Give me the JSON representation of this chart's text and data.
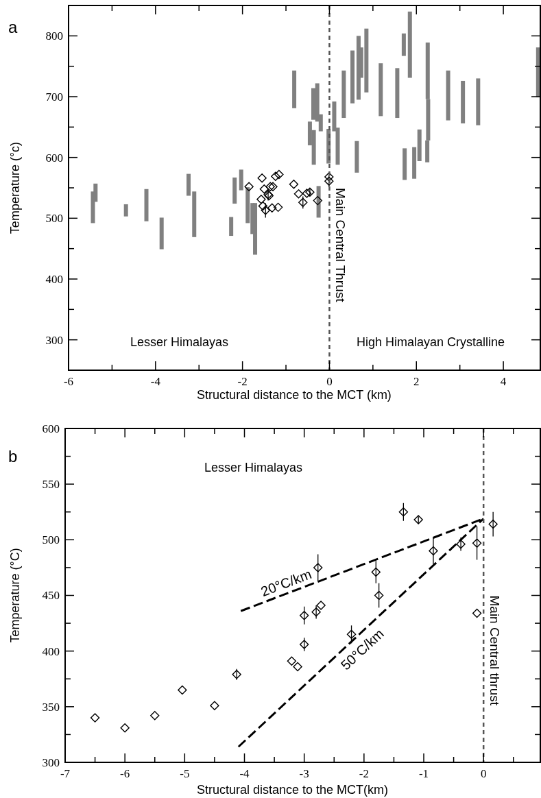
{
  "chart_data": [
    {
      "type": "bar",
      "title": "a",
      "xlabel": "Structural distance to the MCT (km)",
      "ylabel": "Temperature  (°c)",
      "xlim": [
        -6,
        4.85
      ],
      "ylim": [
        250,
        850
      ],
      "xticks": [
        -6,
        {
          "value": -5,
          "label": null
        },
        -4,
        {
          "value": -3,
          "label": null
        },
        -2,
        {
          "value": -1,
          "label": null
        },
        0,
        {
          "value": 1,
          "label": null
        },
        2,
        {
          "value": 3,
          "label": null
        },
        4
      ],
      "yticks": [
        {
          "value": 250,
          "label": null
        },
        300,
        {
          "value": 350,
          "label": null
        },
        400,
        {
          "value": 450,
          "label": null
        },
        500,
        {
          "value": 550,
          "label": null
        },
        600,
        {
          "value": 650,
          "label": null
        },
        700,
        {
          "value": 750,
          "label": null
        },
        800
      ],
      "series": [
        {
          "color": "#808080",
          "x": [
            -5.44,
            -5.38,
            -4.68,
            -4.21,
            -3.86,
            -3.24,
            -3.11,
            -2.26,
            -2.18,
            -2.03,
            -1.88,
            -1.77,
            -1.71,
            -0.81,
            -0.45,
            -0.37,
            -0.36,
            -0.28,
            -0.25,
            -0.2,
            -0.02,
            0.11,
            0.19,
            0.33,
            0.53,
            0.63,
            0.67,
            0.73,
            0.85,
            1.18,
            1.56,
            1.71,
            1.73,
            1.85,
            1.95,
            2.07,
            2.25,
            2.26,
            2.27,
            2.73,
            3.07,
            3.42,
            4.8
          ],
          "base": [
            492,
            527,
            503,
            495,
            449,
            537,
            469,
            471,
            524,
            546,
            492,
            474,
            440,
            681,
            620,
            662,
            588,
            659,
            501,
            643,
            590,
            643,
            588,
            665,
            689,
            575,
            695,
            731,
            707,
            668,
            665,
            767,
            563,
            731,
            565,
            594,
            592,
            696,
            628,
            661,
            656,
            653,
            699
          ],
          "values": [
            52,
            30,
            20,
            53,
            52,
            36,
            75,
            31,
            43,
            34,
            59,
            51,
            85,
            62,
            39,
            52,
            57,
            63,
            52,
            28,
            57,
            49,
            61,
            78,
            87,
            52,
            105,
            50,
            105,
            87,
            82,
            37,
            52,
            109,
            52,
            52,
            36,
            93,
            68,
            82,
            70,
            77,
            82
          ]
        },
        {
          "type": "scatter",
          "color": "#000000",
          "marker": "diamond",
          "x": [
            -1.85,
            -1.55,
            -1.57,
            -1.53,
            -1.47,
            -1.5,
            -1.41,
            -1.36,
            -1.3,
            -1.24,
            -1.16,
            -1.32,
            -1.18,
            -1.39,
            -0.82,
            -0.71,
            -0.61,
            -0.52,
            -0.45,
            -0.27,
            -0.01,
            -0.01
          ],
          "values": [
            552,
            566,
            531,
            520,
            513,
            548,
            539,
            552,
            552,
            569,
            572,
            517,
            518,
            537,
            556,
            540,
            526,
            541,
            543,
            529,
            568,
            561
          ],
          "errors": [
            null,
            null,
            null,
            null,
            12,
            null,
            10,
            null,
            null,
            null,
            null,
            null,
            null,
            null,
            null,
            null,
            10,
            null,
            6,
            null,
            null,
            10
          ]
        }
      ],
      "ref_lines": [
        {
          "axis": "x",
          "value": 0,
          "label": "Main Central Thrust",
          "color": "#555555",
          "line_style": "dashed"
        }
      ],
      "annotations": [
        "Lesser Himalayas",
        "High Himalayan Crystalline"
      ]
    },
    {
      "type": "scatter",
      "title": "b",
      "xlabel": "Structural distance to the MCT(km)",
      "ylabel": "Temperature (°C)",
      "xlim": [
        -7,
        0.95
      ],
      "ylim": [
        300,
        600
      ],
      "xticks": [
        -7,
        {
          "value": -6.5,
          "label": null
        },
        -6,
        {
          "value": -5.5,
          "label": null
        },
        -5,
        {
          "value": -4.5,
          "label": null
        },
        -4,
        {
          "value": -3.5,
          "label": null
        },
        -3,
        {
          "value": -2.5,
          "label": null
        },
        -2,
        {
          "value": -1.5,
          "label": null
        },
        -1,
        {
          "value": -0.5,
          "label": null
        },
        0,
        {
          "value": 0.5,
          "label": null
        }
      ],
      "yticks": [
        300,
        {
          "value": 325,
          "label": null
        },
        350,
        {
          "value": 375,
          "label": null
        },
        400,
        {
          "value": 425,
          "label": null
        },
        450,
        {
          "value": 475,
          "label": null
        },
        500,
        {
          "value": 525,
          "label": null
        },
        550,
        {
          "value": 575,
          "label": null
        },
        600
      ],
      "series": [
        {
          "color": "#000000",
          "marker": "diamond",
          "x": [
            -6.5,
            -6,
            -5.5,
            -5.04,
            -4.5,
            -4.13,
            -3,
            -3,
            -3.21,
            -3.11,
            -2.8,
            -2.72,
            -2.77,
            -2.21,
            -1.8,
            -1.75,
            -1.34,
            -1.09,
            -0.84,
            -0.38,
            -0.11,
            -0.11,
            0.16
          ],
          "values": [
            340,
            331,
            342,
            365,
            351,
            379,
            432,
            406,
            391,
            386,
            435,
            441,
            475,
            415,
            471,
            450,
            525,
            518,
            490,
            496,
            497,
            434,
            514
          ],
          "errors": [
            null,
            null,
            null,
            null,
            null,
            5,
            8,
            6,
            null,
            null,
            6,
            null,
            12,
            8,
            10,
            11,
            8,
            3,
            12,
            6,
            15,
            null,
            11
          ]
        },
        {
          "type": "line",
          "name": "20°C/km",
          "color": "#000000",
          "line_style": "dashed",
          "x": [
            -4.06,
            0
          ],
          "values": [
            436,
            519
          ]
        },
        {
          "type": "line",
          "name": "50°C/km",
          "color": "#000000",
          "line_style": "dashed",
          "x": [
            -4.1,
            0
          ],
          "values": [
            314,
            519
          ]
        }
      ],
      "ref_lines": [
        {
          "axis": "x",
          "value": 0,
          "label": "Main Central thrust",
          "color": "#555555",
          "line_style": "dashed"
        }
      ],
      "annotations": [
        "Lesser Himalayas"
      ]
    }
  ]
}
